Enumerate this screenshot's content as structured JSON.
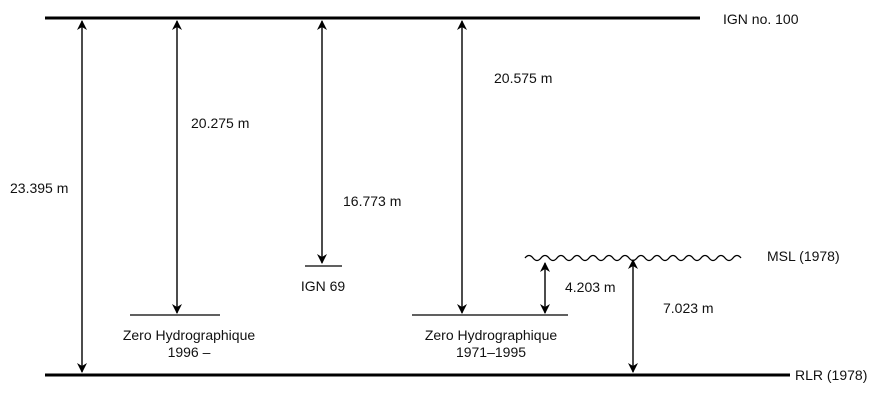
{
  "levels": {
    "ign_no_100": "IGN no. 100",
    "msl_1978": "MSL (1978)",
    "rlr_1978": "RLR (1978)",
    "ign_69": "IGN 69",
    "zh_1996_line1": "Zero Hydrographique",
    "zh_1996_line2": "1996 –",
    "zh_1971_line1": "Zero Hydrographique",
    "zh_1971_line2": "1971–1995"
  },
  "measurements": {
    "ign100_to_rlr": "23.395 m",
    "ign100_to_zh1996": "20.275 m",
    "ign100_to_ign69": "16.773 m",
    "ign100_to_zh1971": "20.575 m",
    "zh1971_to_msl": "4.203 m",
    "msl_to_rlr": "7.023 m"
  }
}
